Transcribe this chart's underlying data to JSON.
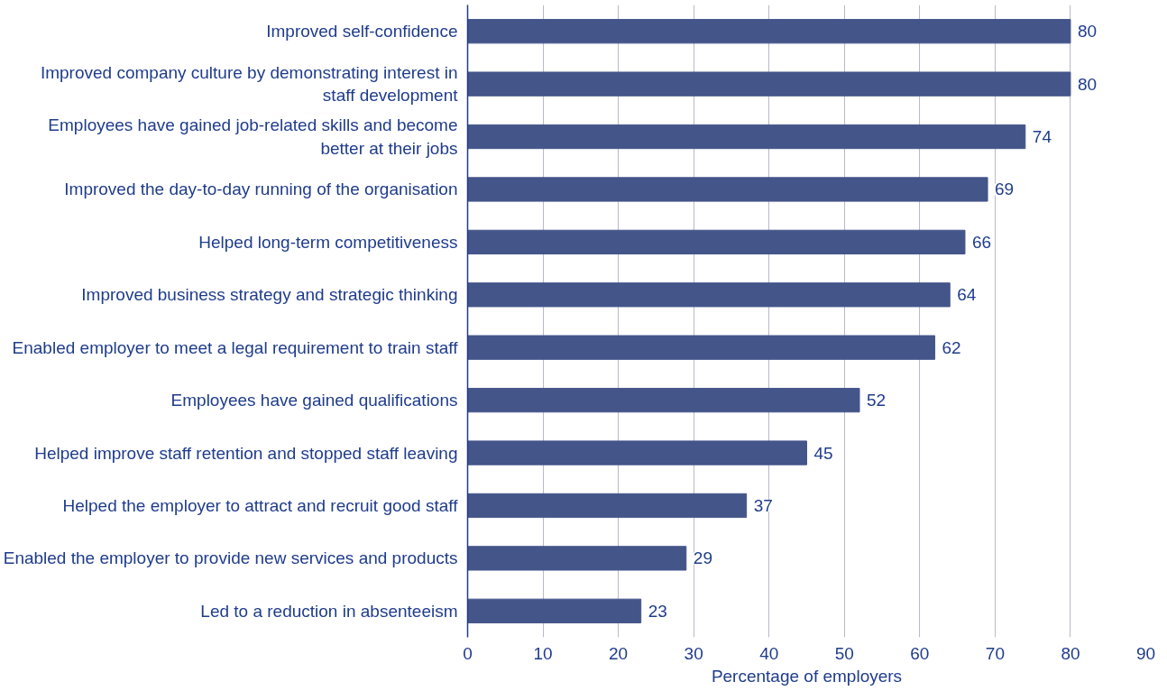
{
  "chart_data": {
    "type": "bar",
    "orientation": "horizontal",
    "xlabel": "Percentage of employers",
    "categories": [
      "Improved self-confidence",
      "Improved company culture by demonstrating interest in staff development",
      "Employees have gained job-related skills and become better at their jobs",
      "Improved the day-to-day running of the organisation",
      "Helped long-term competitiveness",
      "Improved business strategy and strategic thinking",
      "Enabled employer to meet a legal requirement to train staff",
      "Employees have gained qualifications",
      "Helped improve staff retention and stopped staff leaving",
      "Helped the employer to attract and recruit good staff",
      "Enabled the employer to provide new services and products",
      "Led to a reduction in absenteeism"
    ],
    "values": [
      80,
      80,
      74,
      69,
      66,
      64,
      62,
      52,
      45,
      37,
      29,
      23
    ],
    "color": "#44558a",
    "xlim": [
      0,
      90
    ],
    "xticks": [
      0,
      10,
      20,
      30,
      40,
      50,
      60,
      70,
      80,
      90
    ],
    "grid": "x",
    "data_labels": true
  }
}
